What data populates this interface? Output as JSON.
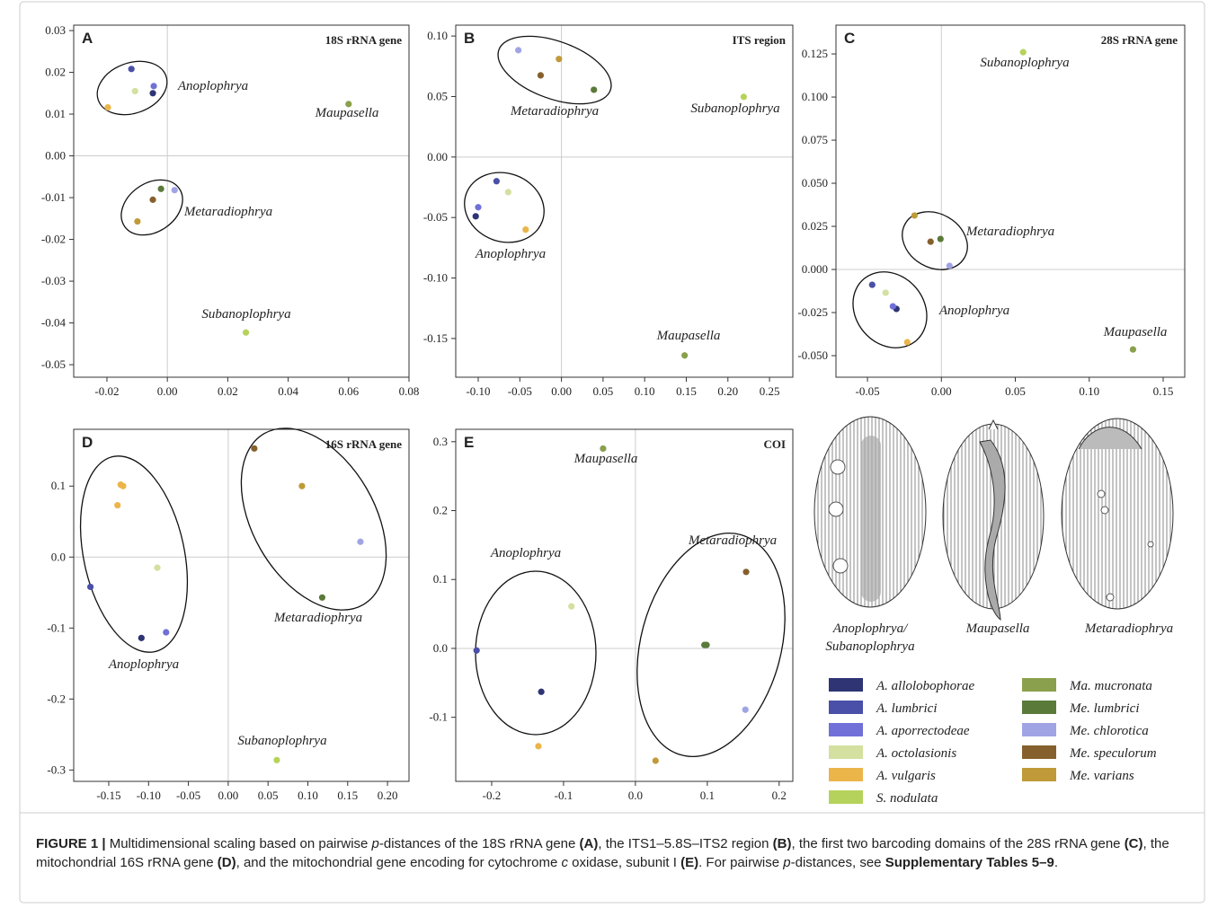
{
  "chart_data": [
    {
      "type": "scatter",
      "label": "A",
      "title": "18S rRNA gene",
      "zero_lines": true,
      "xlim": [
        -0.031,
        0.08
      ],
      "ylim": [
        -0.053,
        0.0313
      ],
      "xticks": [
        -0.02,
        {
          "value": 0,
          "label": "0.00"
        },
        0.02,
        0.04,
        0.06,
        0.08
      ],
      "yticks": [
        0.03,
        0.02,
        0.01,
        {
          "value": 0,
          "label": "0.00"
        },
        -0.01,
        -0.02,
        -0.03,
        -0.04,
        -0.05
      ],
      "annotations": [
        "Anoplophrya",
        "Metaradiophrya",
        "Maupasella",
        "Subanoplophrya"
      ],
      "series": [
        {
          "color": "#2e3474",
          "x": [
            -0.0048
          ],
          "y": [
            0.015
          ]
        },
        {
          "color": "#4a4fa8",
          "x": [
            -0.0119
          ],
          "y": [
            0.0208
          ]
        },
        {
          "color": "#7070d8",
          "x": [
            -0.0045
          ],
          "y": [
            0.0167
          ]
        },
        {
          "color": "#d3e0a0",
          "x": [
            -0.0107
          ],
          "y": [
            0.0155
          ]
        },
        {
          "color": "#ebb54a",
          "x": [
            -0.0197
          ],
          "y": [
            0.0116
          ]
        },
        {
          "color": "#b5d35c",
          "x": [
            0.026
          ],
          "y": [
            -0.0423
          ]
        },
        {
          "color": "#8aa04c",
          "x": [
            0.06
          ],
          "y": [
            0.0124
          ]
        },
        {
          "color": "#5a7a3a",
          "x": [
            -0.0021
          ],
          "y": [
            -0.0079
          ]
        },
        {
          "color": "#a0a4e4",
          "x": [
            0.0024
          ],
          "y": [
            -0.0082
          ]
        },
        {
          "color": "#86602c",
          "x": [
            -0.0048
          ],
          "y": [
            -0.0105
          ]
        },
        {
          "color": "#c09a38",
          "x": [
            -0.0099
          ],
          "y": [
            -0.0157
          ]
        }
      ]
    },
    {
      "type": "scatter",
      "label": "B",
      "title": "ITS region",
      "zero_lines": true,
      "xlim": [
        -0.127,
        0.278
      ],
      "ylim": [
        -0.182,
        0.109
      ],
      "xticks": [
        {
          "value": -0.1,
          "label": "-0.10"
        },
        -0.05,
        {
          "value": 0,
          "label": "0.00"
        },
        0.05,
        {
          "value": 0.1,
          "label": "0.10"
        },
        0.15,
        {
          "value": 0.2,
          "label": "0.20"
        },
        0.25
      ],
      "yticks": [
        {
          "value": 0.1,
          "label": "0.10"
        },
        0.05,
        {
          "value": 0,
          "label": "0.00"
        },
        -0.05,
        {
          "value": -0.1,
          "label": "-0.10"
        },
        -0.15
      ],
      "annotations": [
        "Metaradiophrya",
        "Subanoplophrya",
        "Anoplophrya",
        "Maupasella"
      ],
      "series": [
        {
          "color": "#2e3474",
          "x": [
            -0.103
          ],
          "y": [
            -0.049
          ]
        },
        {
          "color": "#4a4fa8",
          "x": [
            -0.078
          ],
          "y": [
            -0.02
          ]
        },
        {
          "color": "#7070d8",
          "x": [
            -0.1
          ],
          "y": [
            -0.0415
          ]
        },
        {
          "color": "#d3e0a0",
          "x": [
            -0.064
          ],
          "y": [
            -0.029
          ]
        },
        {
          "color": "#ebb54a",
          "x": [
            -0.043
          ],
          "y": [
            -0.06
          ]
        },
        {
          "color": "#b5d35c",
          "x": [
            0.219
          ],
          "y": [
            0.0497
          ]
        },
        {
          "color": "#8aa04c",
          "x": [
            0.148
          ],
          "y": [
            -0.164
          ]
        },
        {
          "color": "#5a7a3a",
          "x": [
            0.039
          ],
          "y": [
            0.0556
          ]
        },
        {
          "color": "#a0a4e4",
          "x": [
            -0.0518
          ],
          "y": [
            0.0883
          ]
        },
        {
          "color": "#86602c",
          "x": [
            -0.025
          ],
          "y": [
            0.0675
          ]
        },
        {
          "color": "#c09a38",
          "x": [
            -0.003
          ],
          "y": [
            0.081
          ]
        }
      ]
    },
    {
      "type": "scatter",
      "label": "C",
      "title": "28S rRNA gene",
      "zero_lines": true,
      "xlim": [
        -0.0713,
        0.1646
      ],
      "ylim": [
        -0.0625,
        0.1417
      ],
      "xticks": [
        -0.05,
        {
          "value": 0,
          "label": "0.00"
        },
        0.05,
        {
          "value": 0.1,
          "label": "0.10"
        },
        0.15
      ],
      "yticks": [
        0.125,
        {
          "value": 0.1,
          "label": "0.100"
        },
        0.075,
        {
          "value": 0.05,
          "label": "0.050"
        },
        0.025,
        {
          "value": 0,
          "label": "0.000"
        },
        -0.025,
        {
          "value": -0.05,
          "label": "-0.050"
        }
      ],
      "annotations": [
        "Subanoplophrya",
        "Metaradiophrya",
        "Anoplophrya",
        "Maupasella"
      ],
      "series": [
        {
          "color": "#2e3474",
          "x": [
            -0.0304
          ],
          "y": [
            -0.0229
          ]
        },
        {
          "color": "#4a4fa8",
          "x": [
            -0.0468
          ],
          "y": [
            -0.0089
          ]
        },
        {
          "color": "#7070d8",
          "x": [
            -0.0328
          ],
          "y": [
            -0.0214
          ]
        },
        {
          "color": "#d3e0a0",
          "x": [
            -0.0377
          ],
          "y": [
            -0.0135
          ]
        },
        {
          "color": "#ebb54a",
          "x": [
            -0.0231
          ],
          "y": [
            -0.0422
          ]
        },
        {
          "color": "#b5d35c",
          "x": [
            0.0553
          ],
          "y": [
            0.126
          ]
        },
        {
          "color": "#8aa04c",
          "x": [
            0.1296
          ],
          "y": [
            -0.0464
          ]
        },
        {
          "color": "#5a7a3a",
          "x": [
            -0.0006
          ],
          "y": [
            0.0177
          ]
        },
        {
          "color": "#a0a4e4",
          "x": [
            0.0055
          ],
          "y": [
            0.0021
          ]
        },
        {
          "color": "#86602c",
          "x": [
            -0.0073
          ],
          "y": [
            0.0161
          ]
        },
        {
          "color": "#c09a38",
          "x": [
            -0.0182
          ],
          "y": [
            0.0313
          ]
        }
      ]
    },
    {
      "type": "scatter",
      "label": "D",
      "title": "16S rRNA gene",
      "zero_lines": true,
      "xlim": [
        -0.194,
        0.227
      ],
      "ylim": [
        -0.316,
        0.18
      ],
      "xticks": [
        -0.15,
        {
          "value": -0.1,
          "label": "-0.10"
        },
        -0.05,
        {
          "value": 0,
          "label": "0.00"
        },
        0.05,
        {
          "value": 0.1,
          "label": "0.10"
        },
        0.15,
        {
          "value": 0.2,
          "label": "0.20"
        }
      ],
      "yticks": [
        0.1,
        {
          "value": 0,
          "label": "0.0"
        },
        -0.1,
        -0.2,
        -0.3
      ],
      "annotations": [
        "Metaradiophrya",
        "Anoplophrya",
        "Subanoplophrya"
      ],
      "series": [
        {
          "color": "#2e3474",
          "x": [
            -0.109
          ],
          "y": [
            -0.114
          ]
        },
        {
          "color": "#4a4fa8",
          "x": [
            -0.173
          ],
          "y": [
            -0.042
          ]
        },
        {
          "color": "#7070d8",
          "x": [
            -0.078
          ],
          "y": [
            -0.106
          ]
        },
        {
          "color": "#d3e0a0",
          "x": [
            -0.089
          ],
          "y": [
            -0.015
          ]
        },
        {
          "color": "#ebb54a",
          "x": [
            -0.135,
            -0.132,
            -0.139
          ],
          "y": [
            0.102,
            0.1,
            0.073
          ]
        },
        {
          "color": "#b5d35c",
          "x": [
            0.061
          ],
          "y": [
            -0.286
          ]
        },
        {
          "color": "#5a7a3a",
          "x": [
            0.118
          ],
          "y": [
            -0.057
          ]
        },
        {
          "color": "#a0a4e4",
          "x": [
            0.166
          ],
          "y": [
            0.0215
          ]
        },
        {
          "color": "#86602c",
          "x": [
            0.0327
          ],
          "y": [
            0.153
          ]
        },
        {
          "color": "#c09a38",
          "x": [
            0.0926
          ],
          "y": [
            0.1
          ]
        }
      ]
    },
    {
      "type": "scatter",
      "label": "E",
      "title": "COI",
      "zero_lines": true,
      "xlim": [
        -0.25,
        0.219
      ],
      "ylim": [
        -0.193,
        0.318
      ],
      "xticks": [
        -0.2,
        -0.1,
        {
          "value": 0,
          "label": "0.0"
        },
        0.1,
        0.2
      ],
      "yticks": [
        0.3,
        0.2,
        0.1,
        {
          "value": 0,
          "label": "0.0"
        },
        -0.1
      ],
      "annotations": [
        "Maupasella",
        "Anoplophrya",
        "Metaradiophrya"
      ],
      "series": [
        {
          "color": "#2e3474",
          "x": [
            -0.131
          ],
          "y": [
            -0.063
          ]
        },
        {
          "color": "#4a4fa8",
          "x": [
            -0.221
          ],
          "y": [
            -0.003
          ]
        },
        {
          "color": "#d3e0a0",
          "x": [
            -0.089
          ],
          "y": [
            0.061
          ]
        },
        {
          "color": "#ebb54a",
          "x": [
            -0.135
          ],
          "y": [
            -0.142
          ]
        },
        {
          "color": "#8aa04c",
          "x": [
            -0.045
          ],
          "y": [
            0.29
          ]
        },
        {
          "color": "#5a7a3a",
          "x": [
            0.096,
            0.099
          ],
          "y": [
            0.005,
            0.005
          ]
        },
        {
          "color": "#a0a4e4",
          "x": [
            0.153
          ],
          "y": [
            -0.089
          ]
        },
        {
          "color": "#86602c",
          "x": [
            0.154
          ],
          "y": [
            0.111
          ]
        },
        {
          "color": "#c09a38",
          "x": [
            0.028
          ],
          "y": [
            -0.163
          ]
        }
      ]
    }
  ],
  "legend": [
    {
      "name": "A. allolobophorae",
      "color": "#2e3474"
    },
    {
      "name": "A. lumbrici",
      "color": "#4a4fa8"
    },
    {
      "name": "A. aporrectodeae",
      "color": "#7070d8"
    },
    {
      "name": "A. octolasionis",
      "color": "#d3e0a0"
    },
    {
      "name": "A. vulgaris",
      "color": "#ebb54a"
    },
    {
      "name": "S. nodulata",
      "color": "#b5d35c"
    },
    {
      "name": "Ma. mucronata",
      "color": "#8aa04c"
    },
    {
      "name": "Me. lumbrici",
      "color": "#5a7a3a"
    },
    {
      "name": "Me. chlorotica",
      "color": "#a0a4e4"
    },
    {
      "name": "Me. speculorum",
      "color": "#86602c"
    },
    {
      "name": "Me. varians",
      "color": "#c09a38"
    }
  ],
  "illustrations": [
    [
      "Anoplophrya/",
      "Subanoplophrya"
    ],
    [
      "Maupasella"
    ],
    [
      "Metaradiophrya"
    ]
  ],
  "caption": [
    "FIGURE 1 |",
    " Multidimensional scaling based on pairwise ",
    "p",
    "-distances of the 18S rRNA gene ",
    "(A)",
    ", the ITS1–5.8S–ITS2 region ",
    "(B)",
    ", the first two barcoding domains of the 28S rRNA gene ",
    "(C)",
    ", the mitochondrial 16S rRNA gene ",
    "(D)",
    ", and the mitochondrial gene encoding for cytochrome ",
    "c",
    " oxidase, subunit I ",
    "(E)",
    ". For pairwise ",
    "p",
    "-distances, see ",
    "Supplementary Tables 5–9",
    "."
  ]
}
